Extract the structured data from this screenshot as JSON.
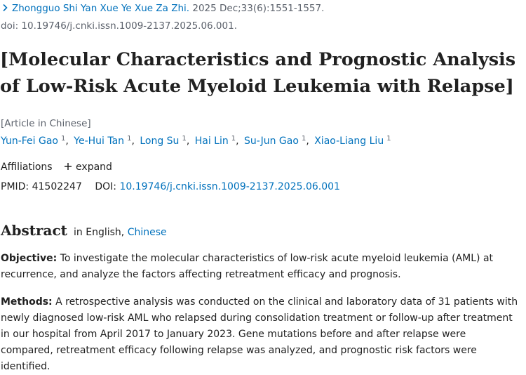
{
  "citation": {
    "journal": "Zhongguo Shi Yan Xue Ye Xue Za Zhi.",
    "date_volume": "2025 Dec;33(6):1551-1557.",
    "doi_line": "doi: 10.19746/j.cnki.issn.1009-2137.2025.06.001."
  },
  "title": "[Molecular Characteristics and Prognostic Analysis of Low-Risk Acute Myeloid Leukemia with Relapse]",
  "publication_type": "[Article in Chinese]",
  "authors": [
    {
      "name": "Yun-Fei Gao",
      "aff": "1"
    },
    {
      "name": "Ye-Hui Tan",
      "aff": "1"
    },
    {
      "name": "Long Su",
      "aff": "1"
    },
    {
      "name": "Hai Lin",
      "aff": "1"
    },
    {
      "name": "Su-Jun Gao",
      "aff": "1"
    },
    {
      "name": "Xiao-Liang Liu",
      "aff": "1"
    }
  ],
  "affiliations": {
    "label": "Affiliations",
    "expand_label": "expand"
  },
  "identifiers": {
    "pmid_label": "PMID:",
    "pmid": "41502247",
    "doi_label": "DOI:",
    "doi": "10.19746/j.cnki.issn.1009-2137.2025.06.001"
  },
  "abstract": {
    "heading": "Abstract",
    "lang_prefix": "in English,",
    "alt_lang": "Chinese",
    "objective_label": "Objective:",
    "objective_text": "To investigate the molecular characteristics of low-risk acute myeloid leukemia (AML) at recurrence, and analyze the factors affecting retreatment efficacy and prognosis.",
    "methods_label": "Methods:",
    "methods_text": "A retrospective analysis was conducted on the clinical and laboratory data of 31 patients with newly diagnosed low-risk AML who relapsed during consolidation treatment or follow-up after treatment in our hospital from April 2017 to January 2023. Gene mutations before and after relapse were compared, retreatment efficacy following relapse was analyzed, and prognostic risk factors were identified."
  },
  "icons": {
    "chevron": "chevron-right-icon",
    "plus": "plus-icon"
  },
  "colors": {
    "link": "#0071bc",
    "text": "#212121",
    "muted": "#5b616b"
  }
}
